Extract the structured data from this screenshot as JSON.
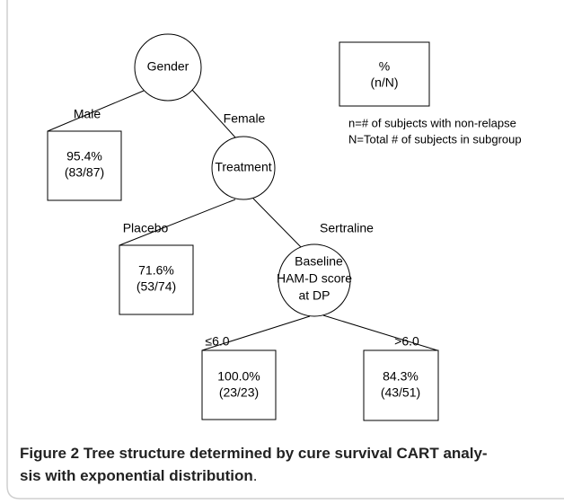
{
  "nodes": [
    {
      "label": "Gender"
    },
    {
      "label": "Treatment"
    },
    {
      "label_lines": [
        "Baseline",
        "HAM-D score",
        "at DP"
      ]
    }
  ],
  "leaves": [
    {
      "percent": "95.4%",
      "count": "(83/87)"
    },
    {
      "percent": "71.6%",
      "count": "(53/74)"
    },
    {
      "percent": "100.0%",
      "count": "(23/23)"
    },
    {
      "percent": "84.3%",
      "count": "(43/51)"
    }
  ],
  "edges": [
    "Male",
    "Female",
    "Placebo",
    "Sertraline",
    "≤6.0",
    ">6.0"
  ],
  "legend": {
    "percent": "%",
    "count": "(n/N)",
    "notes": [
      "n=# of subjects with non-relapse",
      "N=Total # of subjects in subgroup"
    ]
  },
  "caption": {
    "label": "Figure 2",
    "lines": [
      "Tree structure determined by cure survival CART analy-",
      "sis with exponential distribution"
    ],
    "end": "."
  }
}
